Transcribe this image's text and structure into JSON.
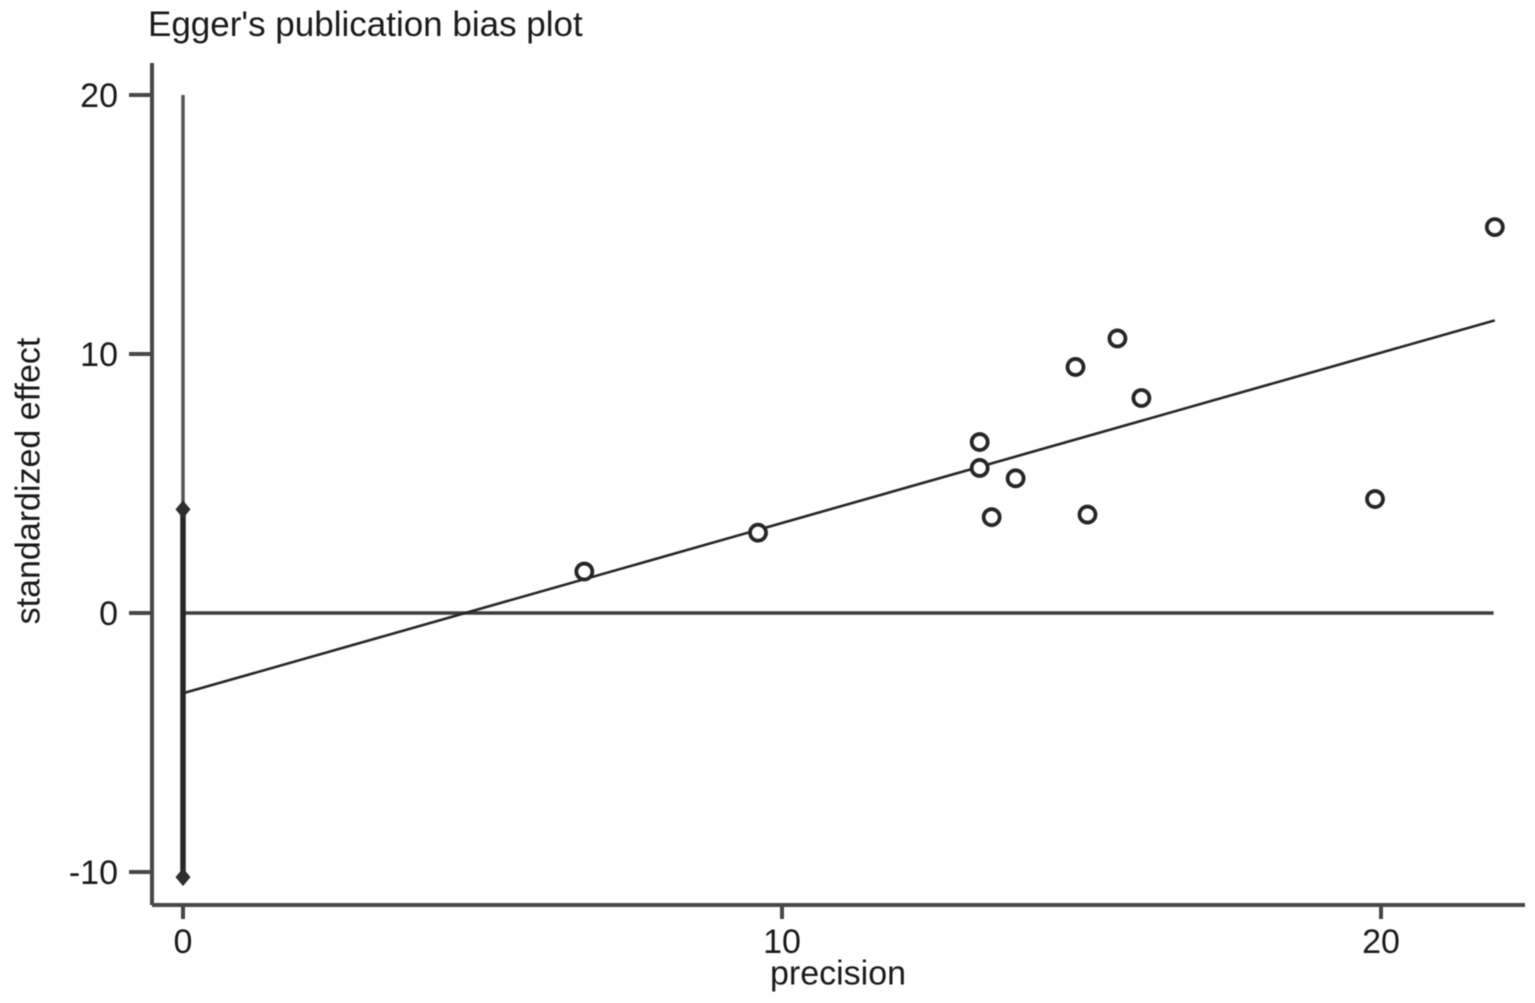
{
  "chart_data": {
    "type": "scatter",
    "title": "Egger's publication bias plot",
    "xlabel": "precision",
    "ylabel": "standardized effect",
    "xticks": [
      0,
      10,
      20
    ],
    "yticks": [
      20,
      10,
      0,
      -10
    ],
    "xlim": [
      -0.55,
      22.45
    ],
    "ylim": [
      -11.3,
      21.3
    ],
    "grid": false,
    "legend": "none",
    "points": [
      {
        "x": 6.7,
        "y": 1.6
      },
      {
        "x": 9.6,
        "y": 3.1
      },
      {
        "x": 13.3,
        "y": 6.6
      },
      {
        "x": 13.3,
        "y": 5.6
      },
      {
        "x": 13.5,
        "y": 3.7
      },
      {
        "x": 13.9,
        "y": 5.2
      },
      {
        "x": 14.9,
        "y": 9.5
      },
      {
        "x": 15.1,
        "y": 3.8
      },
      {
        "x": 15.6,
        "y": 10.6
      },
      {
        "x": 16.0,
        "y": 8.3
      },
      {
        "x": 19.9,
        "y": 4.4
      },
      {
        "x": 21.9,
        "y": 14.9
      }
    ],
    "regression_line": {
      "x1": 0,
      "y1": -3.1,
      "x2": 21.9,
      "y2": 11.3
    },
    "zero_line": {
      "y": 0,
      "x1": 0,
      "x2": 21.88
    },
    "intercept_ci_bar": {
      "x": 0,
      "top": 20.0,
      "upper_marker": 4.0,
      "lower_marker": -10.2
    },
    "colors": {
      "background": "#ffffff",
      "axis": "#474747",
      "tick_text": "#1a1a1a",
      "zero_line": "#3d3d3d",
      "regression": "#262626",
      "marker_stroke": "#262626",
      "marker_fill": "#ffffff",
      "ci_thin": "#555555",
      "ci_thick": "#262626",
      "diamond": "#2e2e2e"
    }
  }
}
